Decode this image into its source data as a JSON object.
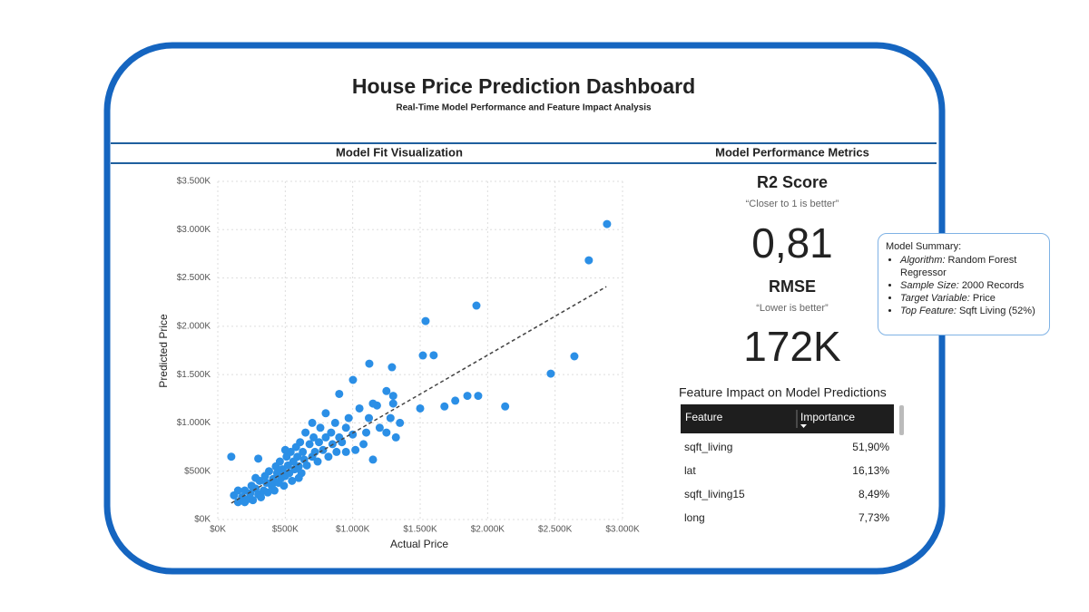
{
  "header": {
    "title": "House Price Prediction Dashboard",
    "subtitle": "Real-Time Model Performance and Feature Impact Analysis"
  },
  "sections": {
    "left": "Model Fit Visualization",
    "right": "Model Performance Metrics"
  },
  "chart_data": {
    "type": "scatter",
    "x_label": "Actual Price",
    "y_label": "Predicted Price",
    "xlim": [
      0,
      3000
    ],
    "ylim": [
      0,
      3500
    ],
    "xticks": [
      {
        "value": 0,
        "label": "$0K"
      },
      {
        "value": 500,
        "label": "$500K"
      },
      {
        "value": 1000,
        "label": "$1.000K"
      },
      {
        "value": 1500,
        "label": "$1.500K"
      },
      {
        "value": 2000,
        "label": "$2.000K"
      },
      {
        "value": 2500,
        "label": "$2.500K"
      },
      {
        "value": 3000,
        "label": "$3.000K"
      }
    ],
    "yticks": [
      {
        "value": 0,
        "label": "$0K"
      },
      {
        "value": 500,
        "label": "$500K"
      },
      {
        "value": 1000,
        "label": "$1.000K"
      },
      {
        "value": 1500,
        "label": "$1.500K"
      },
      {
        "value": 2000,
        "label": "$2.000K"
      },
      {
        "value": 2500,
        "label": "$2.500K"
      },
      {
        "value": 3000,
        "label": "$3.000K"
      },
      {
        "value": 3500,
        "label": "$3.500K"
      }
    ],
    "grid": true,
    "series": [
      {
        "color": "#2b8fe6",
        "x": [
          120,
          150,
          180,
          200,
          220,
          240,
          250,
          260,
          280,
          300,
          310,
          320,
          340,
          350,
          360,
          370,
          380,
          400,
          410,
          420,
          430,
          440,
          450,
          460,
          470,
          480,
          490,
          500,
          510,
          520,
          530,
          540,
          550,
          560,
          570,
          580,
          590,
          600,
          610,
          620,
          630,
          640,
          650,
          660,
          680,
          700,
          710,
          720,
          740,
          750,
          760,
          780,
          800,
          820,
          840,
          850,
          870,
          880,
          900,
          920,
          950,
          970,
          1000,
          1020,
          1050,
          1080,
          1100,
          1120,
          1150,
          1180,
          1200,
          1250,
          1280,
          1300,
          1320,
          1350,
          100,
          150,
          200,
          280,
          300,
          500,
          600,
          700,
          800,
          900,
          950,
          1150,
          1250,
          2885,
          2750,
          2643,
          2468,
          1917,
          1540,
          1520,
          1600,
          1123,
          1291,
          1002,
          1850,
          1930,
          1760,
          1680,
          2130,
          1500,
          1300
        ],
        "values": [
          250,
          180,
          230,
          300,
          210,
          270,
          350,
          200,
          320,
          260,
          400,
          230,
          300,
          450,
          380,
          280,
          500,
          350,
          420,
          300,
          550,
          480,
          380,
          600,
          430,
          520,
          350,
          450,
          650,
          560,
          480,
          700,
          400,
          600,
          520,
          750,
          650,
          550,
          800,
          480,
          700,
          620,
          900,
          560,
          780,
          650,
          850,
          700,
          600,
          800,
          950,
          720,
          850,
          650,
          900,
          780,
          1000,
          700,
          850,
          800,
          950,
          1050,
          880,
          720,
          1150,
          780,
          900,
          1050,
          620,
          1180,
          950,
          900,
          1050,
          1280,
          850,
          1000,
          650,
          300,
          180,
          430,
          630,
          720,
          430,
          1000,
          1100,
          1300,
          700,
          1200,
          1330,
          3058,
          2683,
          1689,
          1510,
          2214,
          2054,
          1698,
          1700,
          1613,
          1576,
          1445,
          1280,
          1280,
          1230,
          1170,
          1170,
          1150,
          1200
        ]
      }
    ],
    "trend_line": {
      "x": [
        100,
        2880
      ],
      "values": [
        170,
        2410
      ]
    }
  },
  "metrics": [
    {
      "name": "R2 Score",
      "hint": "“Closer to 1 is better”",
      "value": "0,81"
    },
    {
      "name": "RMSE",
      "hint": "“Lower is better”",
      "value": "172K"
    }
  ],
  "table": {
    "title": "Feature Impact on Model Predictions",
    "columns": [
      "Feature",
      "Importance"
    ],
    "rows": [
      [
        "sqft_living",
        "51,90%"
      ],
      [
        "lat",
        "16,13%"
      ],
      [
        "sqft_living15",
        "8,49%"
      ],
      [
        "long",
        "7,73%"
      ]
    ]
  },
  "summary": {
    "title": "Model Summary:",
    "items": [
      {
        "label": "Algorithm:",
        "text": "Random Forest Regressor"
      },
      {
        "label": "Sample Size:",
        "text": "2000 Records"
      },
      {
        "label": "Target Variable:",
        "text": "Price"
      },
      {
        "label": "Top Feature:",
        "text": "Sqft Living (52%)"
      }
    ]
  }
}
